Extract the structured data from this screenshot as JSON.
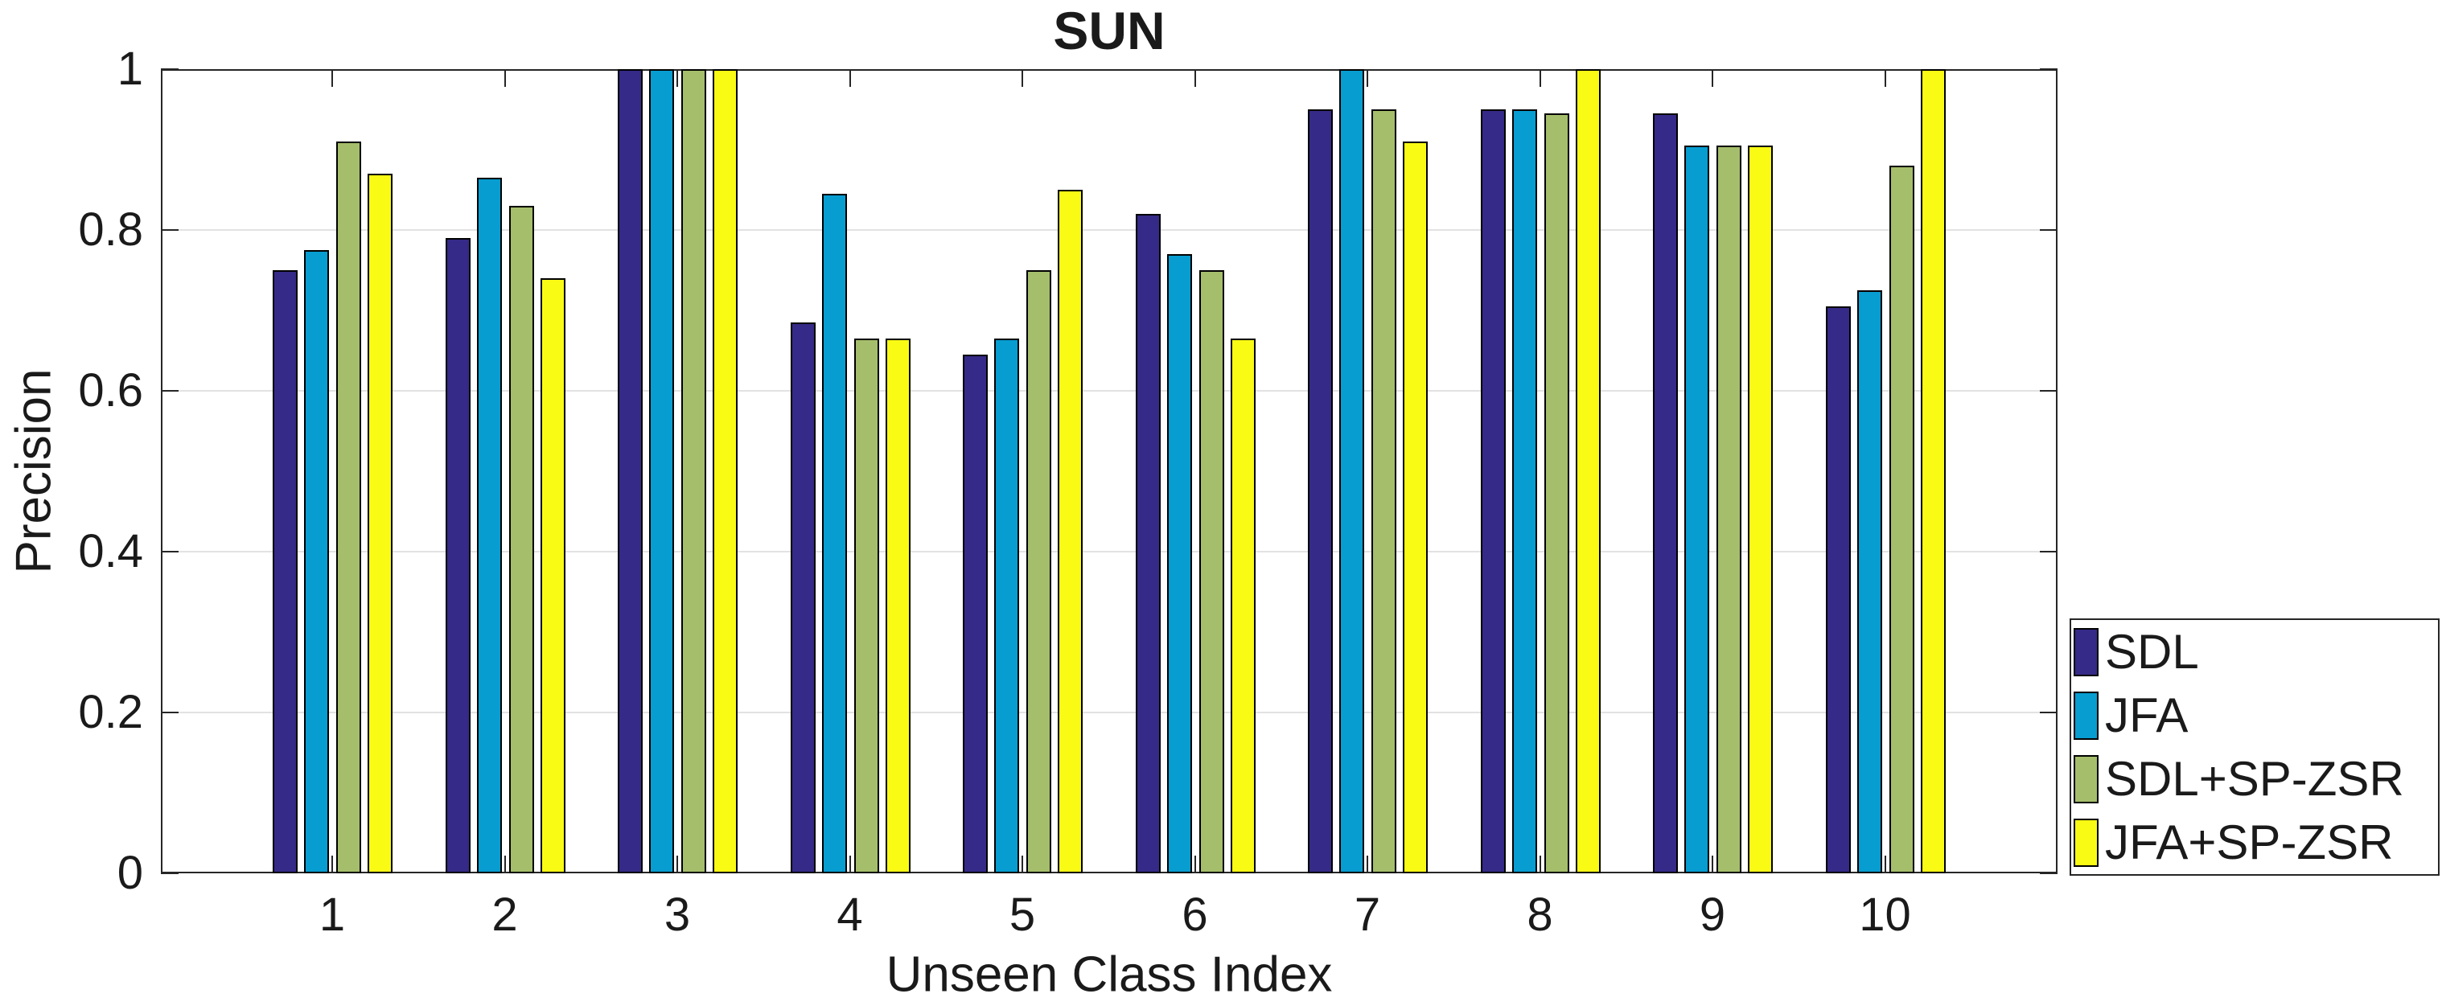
{
  "title": "SUN",
  "axes": {
    "x_label": "Unseen Class Index",
    "y_label": "Precision",
    "y_ticks": [
      {
        "label": "0",
        "value": 0
      },
      {
        "label": "0.2",
        "value": 0.2
      },
      {
        "label": "0.4",
        "value": 0.4
      },
      {
        "label": "0.6",
        "value": 0.6
      },
      {
        "label": "0.8",
        "value": 0.8
      },
      {
        "label": "1",
        "value": 1
      }
    ]
  },
  "legend": {
    "labels": [
      "SDL",
      "JFA",
      "SDL+SP-ZSR",
      "JFA+SP-ZSR"
    ]
  },
  "colors": {
    "sdl": "#352a87",
    "jfa": "#079dd0",
    "sdl_sp_zsr": "#a5be6b",
    "jfa_sp_zsr": "#f9fb15",
    "grid": "#e2e2e2",
    "axis": "#262626"
  },
  "chart_data": {
    "type": "bar",
    "title": "SUN",
    "xlabel": "Unseen Class Index",
    "ylabel": "Precision",
    "ylim": [
      0,
      1
    ],
    "grid": "horizontal",
    "legend_position": "right-bottom-outside",
    "categories": [
      "1",
      "2",
      "3",
      "4",
      "5",
      "6",
      "7",
      "8",
      "9",
      "10"
    ],
    "series": [
      {
        "name": "SDL",
        "color": "#352a87",
        "values": [
          0.75,
          0.79,
          1.0,
          0.685,
          0.645,
          0.82,
          0.95,
          0.95,
          0.945,
          0.705
        ]
      },
      {
        "name": "JFA",
        "color": "#079dd0",
        "values": [
          0.775,
          0.865,
          1.0,
          0.845,
          0.665,
          0.77,
          1.0,
          0.95,
          0.905,
          0.725
        ]
      },
      {
        "name": "SDL+SP-ZSR",
        "color": "#a5be6b",
        "values": [
          0.91,
          0.83,
          1.0,
          0.665,
          0.75,
          0.75,
          0.95,
          0.945,
          0.905,
          0.88
        ]
      },
      {
        "name": "JFA+SP-ZSR",
        "color": "#f9fb15",
        "values": [
          0.87,
          0.74,
          1.0,
          0.665,
          0.85,
          0.665,
          0.91,
          1.0,
          0.905,
          1.0
        ]
      }
    ]
  }
}
